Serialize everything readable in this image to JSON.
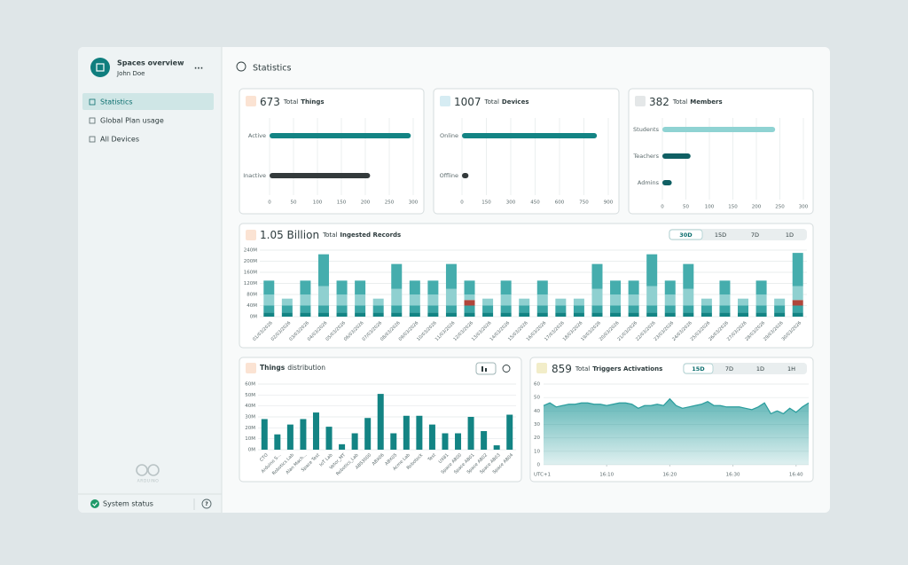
{
  "sidebar": {
    "title": "Spaces overview",
    "user": "John Doe",
    "menu": "...",
    "nav": [
      "Statistics",
      "Global Plan usage",
      "All Devices"
    ],
    "active_nav": 0,
    "brand": "ARDUINO",
    "status": "System status",
    "help": "?"
  },
  "header": {
    "title": "Statistics"
  },
  "chart_data": [
    {
      "type": "hbar",
      "total": 673,
      "title_prefix": "Total",
      "title": "Things",
      "categories": [
        "Active",
        "Inactive"
      ],
      "values": [
        295,
        210
      ],
      "colors": [
        "#138484",
        "#333a3b"
      ],
      "xlim": [
        0,
        300
      ],
      "xticks": [
        0,
        50,
        100,
        150,
        200,
        250,
        300
      ],
      "grid": true
    },
    {
      "type": "hbar",
      "total": 1007,
      "title_prefix": "Total",
      "title": "Devices",
      "categories": [
        "Online",
        "Offline"
      ],
      "values": [
        830,
        40
      ],
      "colors": [
        "#138484",
        "#333a3b"
      ],
      "xlim": [
        0,
        900
      ],
      "xticks": [
        0,
        150,
        300,
        450,
        600,
        750,
        900
      ],
      "grid": true
    },
    {
      "type": "hbar",
      "total": 382,
      "title_prefix": "Total",
      "title": "Members",
      "categories": [
        "Students",
        "Teachers",
        "Admins"
      ],
      "values": [
        240,
        60,
        20
      ],
      "colors": [
        "#8fd3d3",
        "#0f5f63",
        "#0f5f63"
      ],
      "xlim": [
        0,
        300
      ],
      "xticks": [
        0,
        50,
        100,
        150,
        200,
        250,
        300
      ],
      "grid": true
    },
    {
      "type": "stacked_bar",
      "total": "1.05 Billion",
      "title_prefix": "Total",
      "title": "Ingested Records",
      "tabs": [
        "30D",
        "15D",
        "7D",
        "1D"
      ],
      "active_tab": 0,
      "categories": [
        "01/03/2026",
        "02/03/2026",
        "03/03/2026",
        "04/03/2026",
        "05/03/2026",
        "06/03/2026",
        "07/03/2026",
        "08/03/2026",
        "09/03/2026",
        "10/03/2026",
        "11/03/2026",
        "12/03/2026",
        "13/03/2026",
        "14/03/2026",
        "15/03/2026",
        "16/03/2026",
        "17/03/2026",
        "18/03/2026",
        "19/03/2026",
        "20/03/2026",
        "21/03/2026",
        "22/03/2026",
        "23/03/2026",
        "24/03/2026",
        "25/03/2026",
        "26/03/2026",
        "27/03/2026",
        "28/03/2026",
        "29/03/2026",
        "30/03/2026"
      ],
      "series": [
        {
          "color": "#138484",
          "values": [
            15,
            15,
            15,
            15,
            15,
            15,
            15,
            15,
            15,
            15,
            15,
            15,
            15,
            15,
            15,
            15,
            15,
            15,
            15,
            15,
            15,
            15,
            15,
            15,
            15,
            15,
            15,
            15,
            15,
            15
          ]
        },
        {
          "color": "#3aa6a6",
          "values": [
            25,
            25,
            25,
            25,
            25,
            25,
            25,
            25,
            25,
            25,
            25,
            25,
            25,
            25,
            25,
            25,
            25,
            25,
            25,
            25,
            25,
            25,
            25,
            25,
            25,
            25,
            25,
            25,
            25,
            25
          ]
        },
        {
          "color": "#b0463b",
          "values": [
            0,
            0,
            0,
            0,
            0,
            0,
            0,
            0,
            0,
            0,
            0,
            20,
            0,
            0,
            0,
            0,
            0,
            0,
            0,
            0,
            0,
            0,
            0,
            0,
            0,
            0,
            0,
            0,
            0,
            20
          ]
        },
        {
          "color": "#8fd0d0",
          "values": [
            40,
            25,
            40,
            70,
            40,
            40,
            25,
            60,
            40,
            40,
            60,
            20,
            25,
            40,
            25,
            40,
            25,
            25,
            60,
            40,
            40,
            70,
            40,
            60,
            25,
            40,
            25,
            40,
            25,
            50
          ]
        },
        {
          "color": "#45adad",
          "values": [
            50,
            0,
            50,
            115,
            50,
            50,
            0,
            90,
            50,
            50,
            90,
            50,
            0,
            50,
            0,
            50,
            0,
            0,
            90,
            50,
            50,
            115,
            50,
            90,
            0,
            50,
            0,
            50,
            0,
            120
          ]
        }
      ],
      "ylim": [
        0,
        240
      ],
      "yticks": [
        {
          "value": 0,
          "label": "0M"
        },
        {
          "value": 40,
          "label": "40M"
        },
        {
          "value": 80,
          "label": "80M"
        },
        {
          "value": 120,
          "label": "120M"
        },
        {
          "value": 160,
          "label": "160M"
        },
        {
          "value": 200,
          "label": "200M"
        },
        {
          "value": 240,
          "label": "240M"
        }
      ],
      "grid": true
    },
    {
      "type": "bar",
      "title": "Things",
      "title_suffix": "distribution",
      "color": "#138484",
      "categories": [
        "CTO",
        "Arduino S...",
        "Robotics Lab",
        "Alan Mach...",
        "Space Test",
        "IoT Lab",
        "Vetor_MT",
        "Robotics_Lab",
        "ABS3000",
        "ABX06",
        "ABX05",
        "Acme Lab",
        "Roboteck",
        "Test",
        "UX81",
        "Space AB00",
        "Space AB01",
        "Space AB02",
        "Space AB03",
        "Space AB04"
      ],
      "values": [
        28,
        14,
        23,
        28,
        34,
        21,
        5,
        15,
        29,
        51,
        15,
        31,
        31,
        23,
        15,
        15,
        30,
        17,
        4,
        32
      ],
      "ylim": [
        0,
        60
      ],
      "yticks": [
        {
          "value": 0,
          "label": "0M"
        },
        {
          "value": 10,
          "label": "10M"
        },
        {
          "value": 20,
          "label": "20M"
        },
        {
          "value": 30,
          "label": "30M"
        },
        {
          "value": 40,
          "label": "40M"
        },
        {
          "value": 50,
          "label": "50M"
        },
        {
          "value": 60,
          "label": "60M"
        }
      ],
      "grid": true
    },
    {
      "type": "area",
      "total": 859,
      "title_prefix": "Total",
      "title": "Triggers Activations",
      "tabs": [
        "15D",
        "7D",
        "1D",
        "1H"
      ],
      "active_tab": 0,
      "color": "#2a9d9d",
      "x": [
        0,
        1,
        2,
        3,
        4,
        5,
        6,
        7,
        8,
        9,
        10,
        11,
        12,
        13,
        14,
        15,
        16,
        17,
        18,
        19,
        20,
        21,
        22,
        23,
        24,
        25,
        26,
        27,
        28,
        29,
        30,
        31,
        32,
        33,
        34,
        35,
        36,
        37,
        38,
        39,
        40,
        41,
        42
      ],
      "values": [
        44,
        46,
        43,
        44,
        45,
        45,
        46,
        46,
        45,
        45,
        44,
        45,
        46,
        46,
        45,
        42,
        44,
        44,
        45,
        44,
        49,
        44,
        42,
        43,
        44,
        45,
        47,
        44,
        44,
        43,
        43,
        43,
        42,
        41,
        43,
        46,
        38,
        40,
        38,
        42,
        39,
        43,
        46
      ],
      "xlim": [
        0,
        42
      ],
      "xticks": [
        {
          "value": 10,
          "label": "16:10"
        },
        {
          "value": 20,
          "label": "16:20"
        },
        {
          "value": 30,
          "label": "16:30"
        },
        {
          "value": 40,
          "label": "16:40"
        }
      ],
      "x_axis_label": "UTC+1",
      "ylim": [
        0,
        60
      ],
      "yticks": [
        0,
        10,
        20,
        30,
        40,
        50,
        60
      ],
      "grid": true
    }
  ]
}
